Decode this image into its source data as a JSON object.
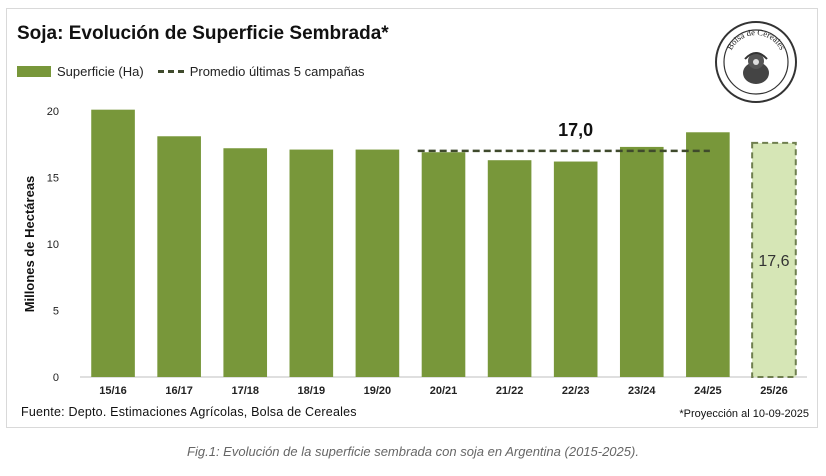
{
  "figure": {
    "title": "Soja: Evolución de Superficie Sembrada*",
    "source": "Fuente: Depto. Estimaciones Agrícolas, Bolsa de Cereales",
    "projection_note": "*Proyección al 10-09-2025",
    "caption": "Fig.1: Evolución de la superficie sembrada con soja en Argentina (2015-2025).",
    "logo_text": "Bolsa de Cereales"
  },
  "colors": {
    "bar": "#78973a",
    "projection_fill": "#d6e6b6",
    "projection_border": "#6f7f4f",
    "average_line": "#3f4a2c"
  },
  "chart_data": {
    "type": "bar",
    "title": "Soja: Evolución de Superficie Sembrada*",
    "xlabel": "",
    "ylabel": "Millones de Hectáreas",
    "ylim": [
      0,
      20
    ],
    "yticks": [
      0,
      5,
      10,
      15,
      20
    ],
    "grid": false,
    "legend_position": "top-left",
    "categories": [
      "15/16",
      "16/17",
      "17/18",
      "18/19",
      "19/20",
      "20/21",
      "21/22",
      "22/23",
      "23/24",
      "24/25",
      "25/26"
    ],
    "series": [
      {
        "name": "Superficie (Ha)",
        "values": [
          20.1,
          18.1,
          17.2,
          17.1,
          17.1,
          16.9,
          16.3,
          16.2,
          17.3,
          18.4,
          17.6
        ],
        "projected": [
          false,
          false,
          false,
          false,
          false,
          false,
          false,
          false,
          false,
          false,
          true
        ]
      }
    ],
    "average_line": {
      "name": "Promedio últimas 5 campañas",
      "value": 17.0,
      "label": "17,0",
      "from_category": "20/21",
      "to_category": "24/25"
    },
    "projection_label": "17,6"
  }
}
